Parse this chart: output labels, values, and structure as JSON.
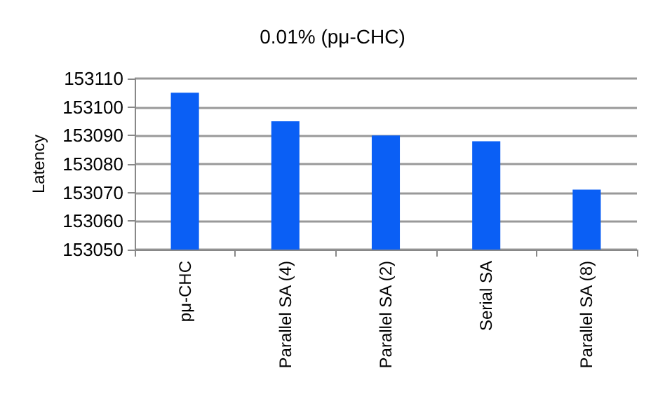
{
  "chart_data": {
    "type": "bar",
    "title": "0.01% (pμ-CHC)",
    "ylabel": "Latency",
    "categories": [
      "pμ-CHC",
      "Parallel SA (4)",
      "Parallel SA (2)",
      "Serial SA",
      "Parallel SA (8)"
    ],
    "values": [
      153105,
      153095,
      153090,
      153088,
      153071
    ],
    "color": "#0a5ff5",
    "ylim": [
      153050,
      153110
    ],
    "yticks": [
      153050,
      153060,
      153070,
      153080,
      153090,
      153100,
      153110
    ],
    "grid": "y"
  }
}
